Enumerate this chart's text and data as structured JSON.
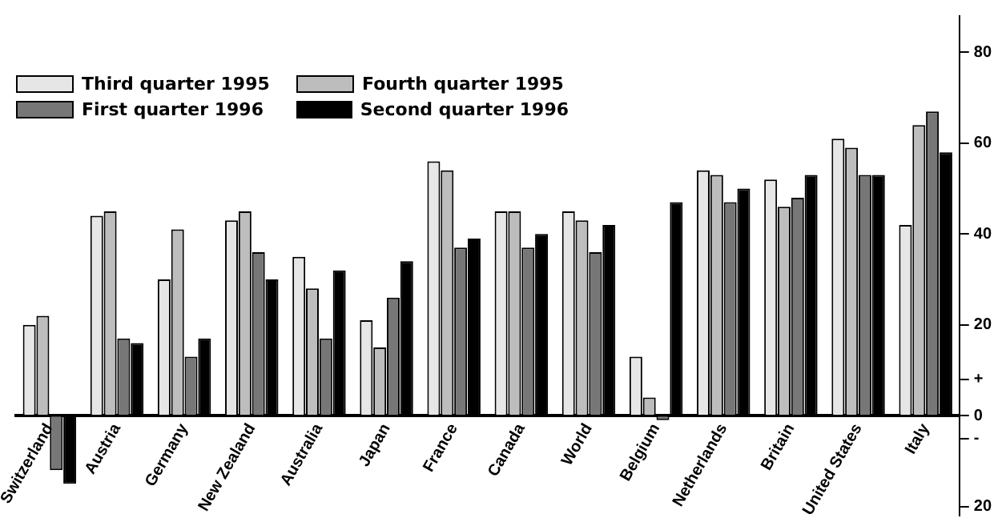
{
  "chart_data": {
    "type": "bar",
    "categories": [
      "Switzerland",
      "Austria",
      "Germany",
      "New Zealand",
      "Australia",
      "Japan",
      "France",
      "Canada",
      "World",
      "Belgium",
      "Netherlands",
      "Britain",
      "United States",
      "Italy"
    ],
    "series": [
      {
        "name": "Third quarter 1995",
        "color": "#e6e6e6",
        "values": [
          20,
          44,
          30,
          43,
          35,
          21,
          56,
          45,
          45,
          13,
          54,
          52,
          61,
          42
        ]
      },
      {
        "name": "Fourth quarter 1995",
        "color": "#bdbdbd",
        "values": [
          22,
          45,
          41,
          45,
          28,
          15,
          54,
          45,
          43,
          4,
          53,
          46,
          59,
          64
        ]
      },
      {
        "name": "First quarter 1996",
        "color": "#777777",
        "values": [
          -12,
          17,
          13,
          36,
          17,
          26,
          37,
          37,
          36,
          -1,
          47,
          48,
          53,
          67
        ]
      },
      {
        "name": "Second quarter 1996",
        "color": "#000000",
        "values": [
          -15,
          16,
          17,
          30,
          32,
          34,
          39,
          40,
          42,
          47,
          50,
          53,
          53,
          58
        ]
      }
    ],
    "ylim": [
      -22,
      88
    ],
    "yticks": [
      80,
      60,
      40,
      20,
      {
        "value": 8,
        "label": "+"
      },
      0,
      {
        "value": -5,
        "label": "-"
      },
      {
        "value": -20,
        "label": "20"
      }
    ],
    "grid": false,
    "legend": "top left"
  }
}
